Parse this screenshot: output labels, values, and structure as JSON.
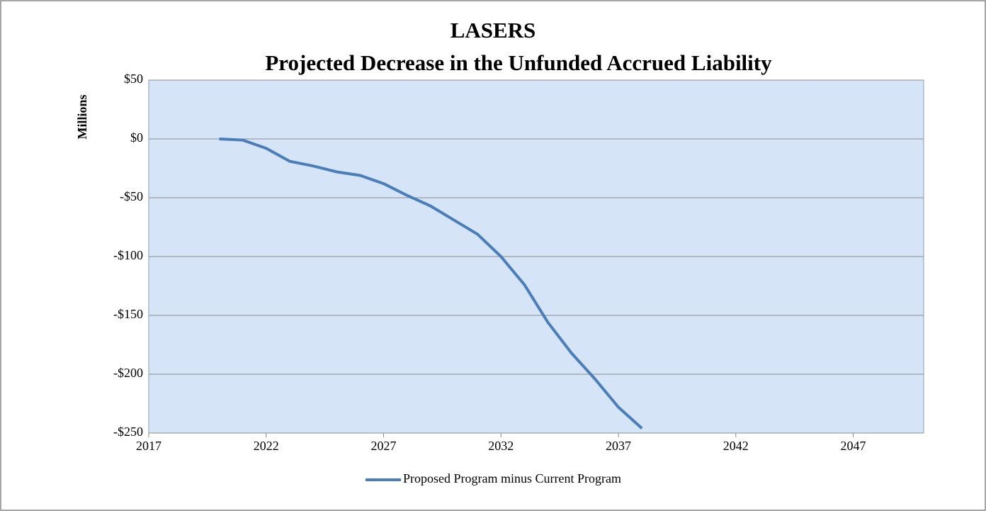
{
  "chart_data": {
    "type": "line",
    "title": [
      "LASERS",
      "Projected Decrease in the Unfunded  Accrued Liability"
    ],
    "y_label": "Millions",
    "x": [
      2020,
      2021,
      2022,
      2023,
      2024,
      2025,
      2026,
      2027,
      2028,
      2029,
      2030,
      2031,
      2032,
      2033,
      2034,
      2035,
      2036,
      2037,
      2038
    ],
    "series": [
      {
        "name": "Proposed Program minus Current Program",
        "color": "#4a7ebb",
        "values": [
          0,
          -1,
          -8,
          -19,
          -23,
          -28,
          -31,
          -38,
          -48,
          -57,
          -69,
          -81,
          -100,
          -124,
          -156,
          -182,
          -204,
          -228,
          -246
        ]
      }
    ],
    "xlim": [
      2017,
      2050
    ],
    "xticks": [
      2017,
      2022,
      2027,
      2032,
      2037,
      2042,
      2047
    ],
    "ylim": [
      -250,
      50
    ],
    "yticks": [
      {
        "value": 50,
        "label": "$50"
      },
      {
        "value": 0,
        "label": "$0"
      },
      {
        "value": -50,
        "label": "-$50"
      },
      {
        "value": -100,
        "label": "-$100"
      },
      {
        "value": -150,
        "label": "-$150"
      },
      {
        "value": -200,
        "label": "-$200"
      },
      {
        "value": -250,
        "label": "-$250"
      }
    ],
    "grid": true,
    "legend": "bottom"
  }
}
